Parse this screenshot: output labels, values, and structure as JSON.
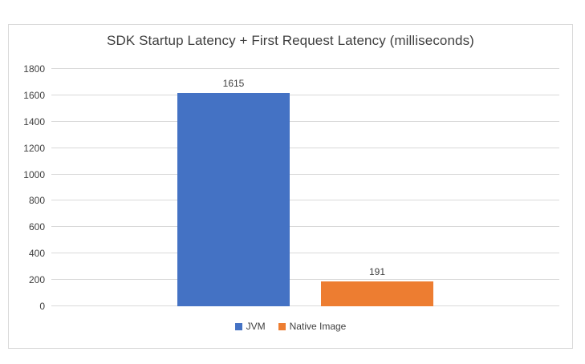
{
  "chart_data": {
    "type": "bar",
    "title": "SDK Startup Latency + First Request Latency (milliseconds)",
    "categories": [
      ""
    ],
    "series": [
      {
        "name": "JVM",
        "values": [
          1615
        ],
        "color": "#4472C4"
      },
      {
        "name": "Native Image",
        "values": [
          191
        ],
        "color": "#ED7D31"
      }
    ],
    "ylim": [
      0,
      1800
    ],
    "ytick_step": 200,
    "yticks": [
      0,
      200,
      400,
      600,
      800,
      1000,
      1200,
      1400,
      1600,
      1800
    ],
    "grid": true,
    "legend_position": "bottom",
    "data_labels": true,
    "colors": {
      "text": "#404040",
      "gridline": "#D9D9D9",
      "frame_border": "#D9D9D9",
      "background": "#FFFFFF"
    }
  }
}
